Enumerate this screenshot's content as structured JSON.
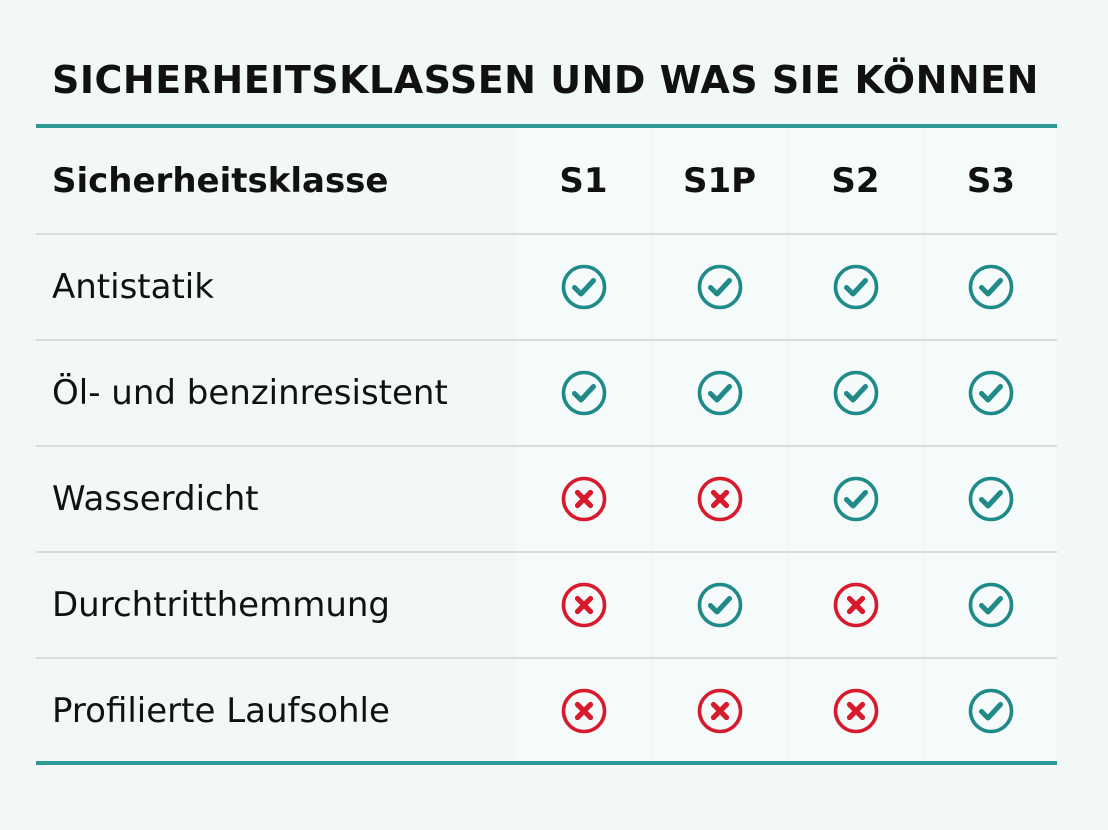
{
  "title": "SICHERHEITSKLASSEN UND WAS SIE KÖNNEN",
  "table": {
    "header_label": "Sicherheitsklasse",
    "columns": [
      "S1",
      "S1P",
      "S2",
      "S3"
    ],
    "rows": [
      {
        "label": "Antistatik",
        "values": [
          true,
          true,
          true,
          true
        ]
      },
      {
        "label": "Öl- und benzinresistent",
        "values": [
          true,
          true,
          true,
          true
        ]
      },
      {
        "label": "Wasserdicht",
        "values": [
          false,
          false,
          true,
          true
        ]
      },
      {
        "label": "Durchtritthemmung",
        "values": [
          false,
          true,
          false,
          true
        ]
      },
      {
        "label": "Profilierte Laufsohle",
        "values": [
          false,
          false,
          false,
          true
        ]
      }
    ],
    "icons": {
      "yes": "check-circle-icon",
      "no": "x-circle-icon"
    }
  },
  "colors": {
    "accent": "#2e9a98",
    "check": "#1f8a88",
    "cross": "#d81b2c",
    "background": "#f1f8f7"
  }
}
